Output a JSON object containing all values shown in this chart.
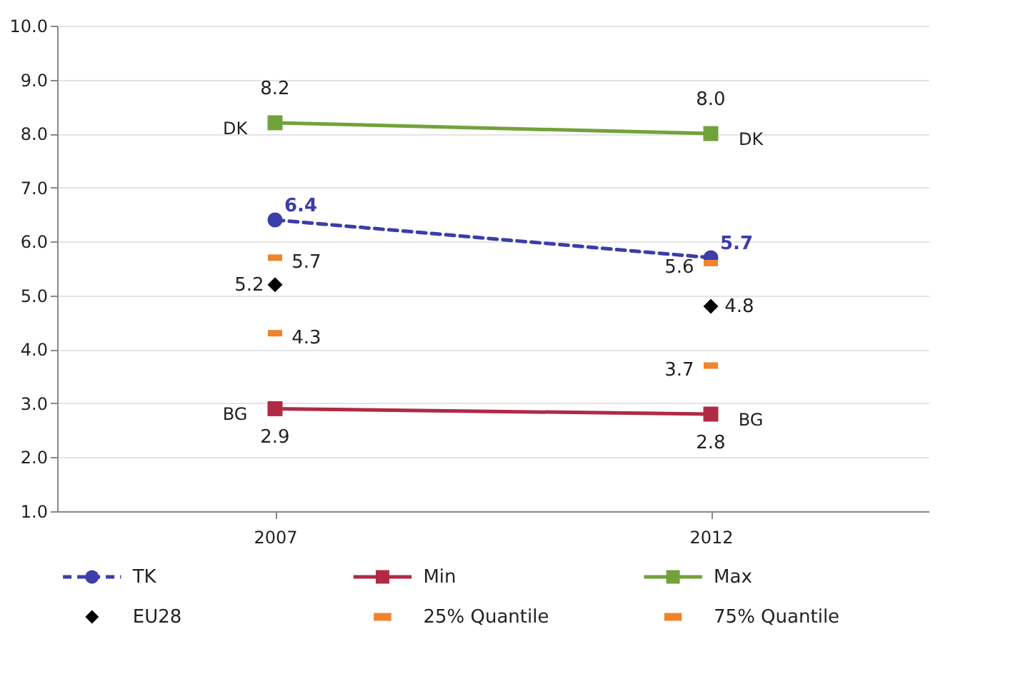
{
  "chart_data": {
    "type": "line",
    "categories": [
      "2007",
      "2012"
    ],
    "series": [
      {
        "name": "TK",
        "marker": "circle",
        "line_style": "dashed",
        "color": "#3c3caa",
        "values": [
          6.4,
          5.7
        ],
        "value_labels": [
          "6.4",
          "5.7"
        ]
      },
      {
        "name": "Min",
        "marker": "square",
        "line_style": "solid",
        "color": "#b02a44",
        "values": [
          2.9,
          2.8
        ],
        "value_labels": [
          "2.9",
          "2.8"
        ]
      },
      {
        "name": "Max",
        "marker": "square",
        "line_style": "solid",
        "color": "#72a23a",
        "values": [
          8.2,
          8.0
        ],
        "value_labels": [
          "8.2",
          "8.0"
        ]
      },
      {
        "name": "EU28",
        "type": "scatter",
        "marker": "diamond",
        "color": "#000000",
        "values": [
          5.2,
          4.8
        ],
        "value_labels": [
          "5.2",
          "4.8"
        ]
      },
      {
        "name": "25% Quantile",
        "type": "scatter",
        "color": "#f0842c",
        "values": [
          4.3,
          3.7
        ],
        "value_labels": [
          "4.3",
          "3.7"
        ]
      },
      {
        "name": "75% Quantile",
        "type": "scatter",
        "color": "#f0842c",
        "values": [
          5.7,
          5.6
        ],
        "value_labels": [
          "5.7",
          "5.6"
        ]
      }
    ],
    "ylim": [
      1.0,
      10.0
    ],
    "yticks": [
      {
        "value": 1,
        "label": "1.0"
      },
      {
        "value": 2,
        "label": "2.0"
      },
      {
        "value": 3,
        "label": "3.0"
      },
      {
        "value": 4,
        "label": "4.0"
      },
      {
        "value": 5,
        "label": "5.0"
      },
      {
        "value": 6,
        "label": "6.0"
      },
      {
        "value": 7,
        "label": "7.0"
      },
      {
        "value": 8,
        "label": "8.0"
      },
      {
        "value": 9,
        "label": "9.0"
      },
      {
        "value": 10,
        "label": "10.0"
      }
    ],
    "grid": "y",
    "legend": "bottom",
    "annotations": [
      {
        "text": "DK",
        "x": "2007",
        "y": 8.2
      },
      {
        "text": "DK",
        "x": "2012",
        "y": 8.0
      },
      {
        "text": "BG",
        "x": "2007",
        "y": 2.9
      },
      {
        "text": "BG",
        "x": "2012",
        "y": 2.8
      }
    ]
  }
}
